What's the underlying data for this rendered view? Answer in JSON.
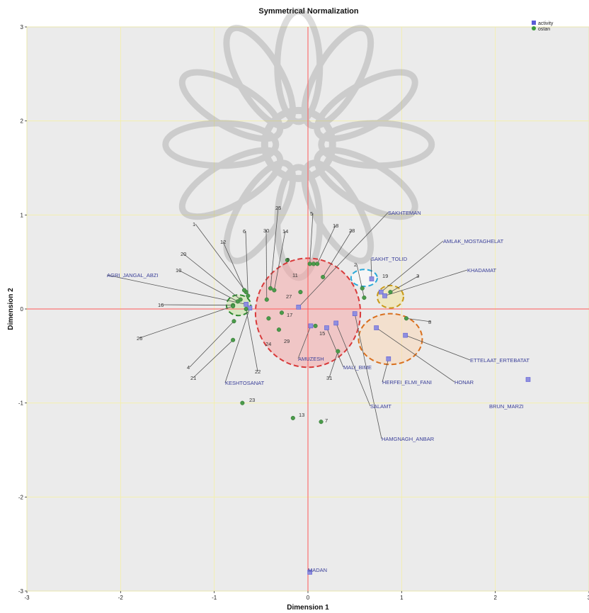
{
  "chart_data": {
    "type": "scatter",
    "title": "Symmetrical Normalization",
    "xlabel": "Dimension 1",
    "ylabel": "Dimension 2",
    "xlim": [
      -3,
      3
    ],
    "ylim": [
      -3,
      3
    ],
    "xticks": [
      "-3",
      "-2",
      "-1",
      "0",
      "1",
      "2",
      "3"
    ],
    "yticks": [
      "3",
      "2",
      "1",
      "0",
      "-1",
      "-2",
      "-3"
    ],
    "grid": true,
    "legend_position": "top-right",
    "legend": [
      {
        "name": "activity",
        "color": "#5b5bd6",
        "marker": "square"
      },
      {
        "name": "ostan",
        "color": "#3d9a3d",
        "marker": "circle"
      }
    ],
    "reference_lines": {
      "x": 0,
      "y": 0,
      "color": "#ff5a5a"
    },
    "series": [
      {
        "name": "activity",
        "color": "#8f8fdf",
        "marker": "square",
        "points": [
          {
            "label": "SAKHTEMAN",
            "x": -0.1,
            "y": 0.02
          },
          {
            "label": "SAKHT_TOLID",
            "x": 0.68,
            "y": 0.32
          },
          {
            "label": "AMLAK_MOSTAGHELAT",
            "x": 0.78,
            "y": 0.18
          },
          {
            "label": "KHADAMAT",
            "x": 0.82,
            "y": 0.14
          },
          {
            "label": "AGRI_JANGAL_ABZI",
            "x": -0.66,
            "y": 0.05
          },
          {
            "label": "KESHTOSANAT",
            "x": -0.62,
            "y": 0.01
          },
          {
            "label": "AMUZESH",
            "x": 0.03,
            "y": -0.18
          },
          {
            "label": "MALI_BIME",
            "x": 0.2,
            "y": -0.2
          },
          {
            "label": "SALAMT",
            "x": 0.3,
            "y": -0.15
          },
          {
            "label": "HAMGNAGH_ANBAR",
            "x": 0.5,
            "y": -0.05
          },
          {
            "label": "HERFEI_ELMI_FANI",
            "x": 0.86,
            "y": -0.53
          },
          {
            "label": "HONAR",
            "x": 0.73,
            "y": -0.2
          },
          {
            "label": "ETTELAAT_ERTEBATAT",
            "x": 1.04,
            "y": -0.28
          },
          {
            "label": "BRUN_MARZI",
            "x": 2.35,
            "y": -0.75
          },
          {
            "label": "MADAN",
            "x": 0.02,
            "y": -2.8
          }
        ]
      },
      {
        "name": "ostan",
        "color": "#4a9a4a",
        "marker": "circle",
        "points": [
          {
            "label": "1",
            "x": -0.66,
            "y": 0.18
          },
          {
            "label": "2",
            "x": 0.6,
            "y": 0.12
          },
          {
            "label": "3",
            "x": 0.88,
            "y": 0.18
          },
          {
            "label": "4",
            "x": -0.79,
            "y": -0.13
          },
          {
            "label": "5",
            "x": 0.02,
            "y": 0.48
          },
          {
            "label": "6",
            "x": -0.64,
            "y": 0.14
          },
          {
            "label": "7",
            "x": 0.14,
            "y": -1.2
          },
          {
            "label": "8",
            "x": 1.05,
            "y": -0.1
          },
          {
            "label": "9",
            "x": -0.22,
            "y": 0.52
          },
          {
            "label": "10",
            "x": -0.75,
            "y": 0.08
          },
          {
            "label": "11",
            "x": -0.08,
            "y": 0.18
          },
          {
            "label": "12",
            "x": -0.68,
            "y": 0.2
          },
          {
            "label": "13",
            "x": -0.16,
            "y": -1.16
          },
          {
            "label": "14",
            "x": -0.36,
            "y": 0.2
          },
          {
            "label": "15",
            "x": 0.08,
            "y": -0.18
          },
          {
            "label": "16",
            "x": -0.8,
            "y": 0.04
          },
          {
            "label": "17",
            "x": 0.06,
            "y": 0.48
          },
          {
            "label": "18",
            "x": 0.1,
            "y": 0.48
          },
          {
            "label": "19",
            "x": 0.58,
            "y": 0.22
          },
          {
            "label": "20",
            "x": -0.72,
            "y": 0.1
          },
          {
            "label": "21",
            "x": -0.8,
            "y": -0.33
          },
          {
            "label": "22",
            "x": -0.66,
            "y": 0.0
          },
          {
            "label": "23",
            "x": -0.7,
            "y": -1.0
          },
          {
            "label": "24",
            "x": -0.42,
            "y": -0.1
          },
          {
            "label": "25",
            "x": -0.4,
            "y": 0.22
          },
          {
            "label": "26",
            "x": -0.8,
            "y": 0.03
          },
          {
            "label": "27",
            "x": -0.28,
            "y": -0.04
          },
          {
            "label": "28",
            "x": 0.16,
            "y": 0.34
          },
          {
            "label": "29",
            "x": -0.31,
            "y": -0.22
          },
          {
            "label": "30",
            "x": -0.44,
            "y": 0.1
          },
          {
            "label": "31",
            "x": 0.32,
            "y": -0.45
          }
        ]
      }
    ],
    "clusters": [
      {
        "color": "#d83a3a",
        "fill": "#f4a7a7",
        "cx": 0.0,
        "cy": -0.04,
        "rx": 0.56,
        "ry": 0.58
      },
      {
        "color": "#2f8a2f",
        "fill": "#c9e3a3",
        "cx": -0.74,
        "cy": 0.04,
        "rx": 0.13,
        "ry": 0.11
      },
      {
        "color": "#2aa9d8",
        "fill": "#ffffff",
        "cx": 0.6,
        "cy": 0.33,
        "rx": 0.14,
        "ry": 0.09
      },
      {
        "color": "#c99a1a",
        "fill": "#f2e29c",
        "cx": 0.88,
        "cy": 0.13,
        "rx": 0.14,
        "ry": 0.12
      },
      {
        "color": "#d9701f",
        "fill": "#fad7b6",
        "cx": 0.88,
        "cy": -0.32,
        "rx": 0.34,
        "ry": 0.27
      }
    ]
  }
}
